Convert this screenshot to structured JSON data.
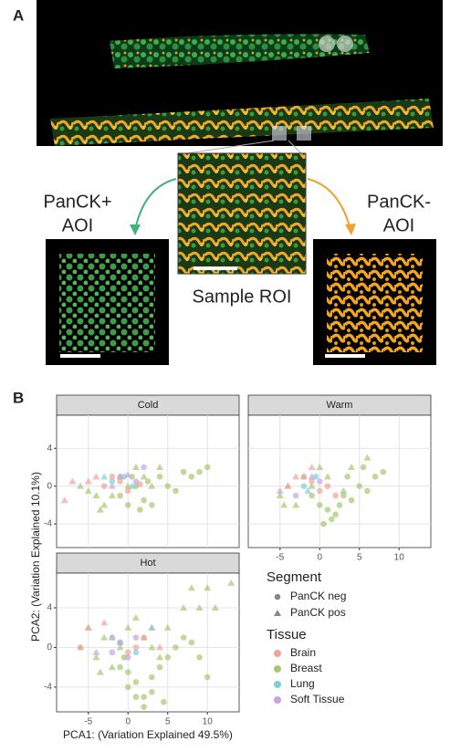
{
  "panel_a": {
    "label": "A",
    "left_label": [
      "PanCK+",
      "AOI"
    ],
    "right_label": [
      "PanCK-",
      "AOI"
    ],
    "center_label": "Sample ROI"
  },
  "panel_b": {
    "label": "B"
  },
  "axes": {
    "xlabel": "PCA1: (Variation Explained 49.5%)",
    "ylabel": "PCA2: (Variation Explained 10.1%)"
  },
  "legend": {
    "segment_title": "Segment",
    "segments": [
      {
        "name": "PanCK neg",
        "shape": "circle"
      },
      {
        "name": "PanCK pos",
        "shape": "triangle"
      }
    ],
    "tissue_title": "Tissue",
    "tissues": [
      {
        "name": "Brain",
        "color": "#f4a39a"
      },
      {
        "name": "Breast",
        "color": "#a5c86d"
      },
      {
        "name": "Lung",
        "color": "#7fcfd4"
      },
      {
        "name": "Soft Tissue",
        "color": "#c7a4e0"
      }
    ]
  },
  "chart_data": [
    {
      "type": "scatter",
      "title": "Cold",
      "xlim": [
        -9,
        14
      ],
      "ylim": [
        -6.5,
        7.5
      ],
      "yticks": [
        -4,
        0,
        4
      ],
      "series": [
        {
          "tissue": "Breast",
          "segment": "PanCK neg",
          "x": [
            -1,
            0,
            1,
            2,
            3,
            4,
            5,
            6,
            7,
            8,
            9,
            10,
            1.5,
            0.5,
            2.5
          ],
          "values": [
            -1,
            -2,
            0,
            -1.5,
            -2,
            1,
            0,
            -0.5,
            1.5,
            1,
            1.5,
            2,
            -2.5,
            1,
            0.5
          ]
        },
        {
          "tissue": "Breast",
          "segment": "PanCK pos",
          "x": [
            -6,
            -4,
            -3,
            -2,
            -1,
            0,
            1,
            2,
            3,
            -5,
            -3.5,
            4
          ],
          "values": [
            0,
            -1,
            -2,
            -1,
            1,
            0,
            2,
            1,
            0,
            -0.5,
            -2.5,
            2
          ]
        },
        {
          "tissue": "Brain",
          "segment": "PanCK neg",
          "x": [
            -3,
            -2,
            -1,
            0,
            1.5
          ],
          "values": [
            0,
            1,
            0.5,
            -0.5,
            0.2
          ]
        },
        {
          "tissue": "Brain",
          "segment": "PanCK pos",
          "x": [
            -8,
            -7,
            -5,
            -4
          ],
          "values": [
            -1.5,
            0.5,
            0.5,
            1
          ]
        },
        {
          "tissue": "Lung",
          "segment": "PanCK neg",
          "x": [
            -2,
            -0.5
          ],
          "values": [
            0.5,
            1
          ]
        },
        {
          "tissue": "Lung",
          "segment": "PanCK pos",
          "x": [
            -3,
            0.5
          ],
          "values": [
            1,
            0
          ]
        },
        {
          "tissue": "Soft Tissue",
          "segment": "PanCK neg",
          "x": [
            -1,
            1,
            2
          ],
          "values": [
            1,
            0.5,
            2
          ]
        },
        {
          "tissue": "Soft Tissue",
          "segment": "PanCK pos",
          "x": [
            -2,
            0
          ],
          "values": [
            0,
            1.2
          ]
        }
      ]
    },
    {
      "type": "scatter",
      "title": "Warm",
      "xlim": [
        -9,
        14
      ],
      "ylim": [
        -6.5,
        7.5
      ],
      "xticks": [
        -5,
        0,
        5,
        10
      ],
      "series": [
        {
          "tissue": "Breast",
          "segment": "PanCK neg",
          "x": [
            -1,
            0,
            1,
            2,
            3,
            4,
            5,
            6,
            7,
            8,
            0.5,
            1.5,
            2.5,
            3.5,
            5.5
          ],
          "values": [
            -1,
            -2,
            -2.5,
            -3,
            -1,
            -1.5,
            0,
            -0.5,
            1,
            1.5,
            -4,
            -3.5,
            -2,
            1,
            2
          ]
        },
        {
          "tissue": "Breast",
          "segment": "PanCK pos",
          "x": [
            -5,
            -4,
            -3,
            -2,
            -1,
            0,
            1,
            3,
            4,
            6,
            -4.5
          ],
          "values": [
            -1,
            0,
            -2,
            1,
            0,
            2,
            1,
            -0.5,
            2,
            3,
            -2
          ]
        },
        {
          "tissue": "Brain",
          "segment": "PanCK neg",
          "x": [
            -2,
            -1,
            0,
            1,
            2
          ],
          "values": [
            1,
            0.5,
            -0.5,
            0,
            -1
          ]
        },
        {
          "tissue": "Brain",
          "segment": "PanCK pos",
          "x": [
            -4,
            -3,
            -1
          ],
          "values": [
            0,
            1,
            2
          ]
        },
        {
          "tissue": "Lung",
          "segment": "PanCK neg",
          "x": [
            -2,
            -0.5
          ],
          "values": [
            0,
            1
          ]
        },
        {
          "tissue": "Lung",
          "segment": "PanCK pos",
          "x": [
            -1.5
          ],
          "values": [
            -0.5
          ]
        },
        {
          "tissue": "Soft Tissue",
          "segment": "PanCK neg",
          "x": [
            -3,
            0
          ],
          "values": [
            -1,
            0.5
          ]
        },
        {
          "tissue": "Soft Tissue",
          "segment": "PanCK pos",
          "x": [
            -5,
            -1
          ],
          "values": [
            -0.5,
            1
          ]
        }
      ]
    },
    {
      "type": "scatter",
      "title": "Hot",
      "xlim": [
        -9,
        14
      ],
      "ylim": [
        -6.5,
        7.5
      ],
      "xticks": [
        -5,
        0,
        5,
        10
      ],
      "yticks": [
        -4,
        0,
        4
      ],
      "series": [
        {
          "tissue": "Breast",
          "segment": "PanCK neg",
          "x": [
            -1,
            0,
            1,
            2,
            3,
            4,
            5,
            6,
            7,
            8,
            9,
            10,
            0,
            1,
            2,
            3,
            -0.5,
            4.5
          ],
          "values": [
            -2,
            -4,
            -5,
            -6,
            -3,
            -2,
            -1,
            0,
            1,
            0.5,
            -1,
            -3,
            -2.5,
            -3.5,
            -5,
            -4.5,
            -1,
            -5.5
          ]
        },
        {
          "tissue": "Breast",
          "segment": "PanCK pos",
          "x": [
            -6,
            -5,
            -4,
            -3,
            -2,
            -1,
            0,
            1,
            2,
            3,
            5,
            7,
            8,
            9,
            10,
            11,
            13,
            -3.5,
            4
          ],
          "values": [
            0,
            2,
            -1,
            1,
            -2,
            0,
            2,
            3,
            1,
            0,
            2,
            4,
            6,
            4,
            6,
            4,
            6.5,
            -2.5,
            -1
          ]
        },
        {
          "tissue": "Brain",
          "segment": "PanCK neg",
          "x": [
            -6,
            -2,
            -1,
            0,
            1,
            2
          ],
          "values": [
            0,
            1,
            0.5,
            -0.5,
            0,
            1
          ]
        },
        {
          "tissue": "Brain",
          "segment": "PanCK pos",
          "x": [
            -5,
            -3,
            3,
            4
          ],
          "values": [
            2,
            2.5,
            2,
            0
          ]
        },
        {
          "tissue": "Lung",
          "segment": "PanCK neg",
          "x": [
            -1,
            1
          ],
          "values": [
            0.5,
            -0.5
          ]
        },
        {
          "tissue": "Lung",
          "segment": "PanCK pos",
          "x": [
            -2,
            3
          ],
          "values": [
            1,
            2
          ]
        },
        {
          "tissue": "Soft Tissue",
          "segment": "PanCK neg",
          "x": [
            -2,
            0,
            1
          ],
          "values": [
            -0.5,
            -1,
            1
          ]
        },
        {
          "tissue": "Soft Tissue",
          "segment": "PanCK pos",
          "x": [
            -4,
            -1
          ],
          "values": [
            -0.5,
            0.5
          ]
        }
      ]
    }
  ]
}
